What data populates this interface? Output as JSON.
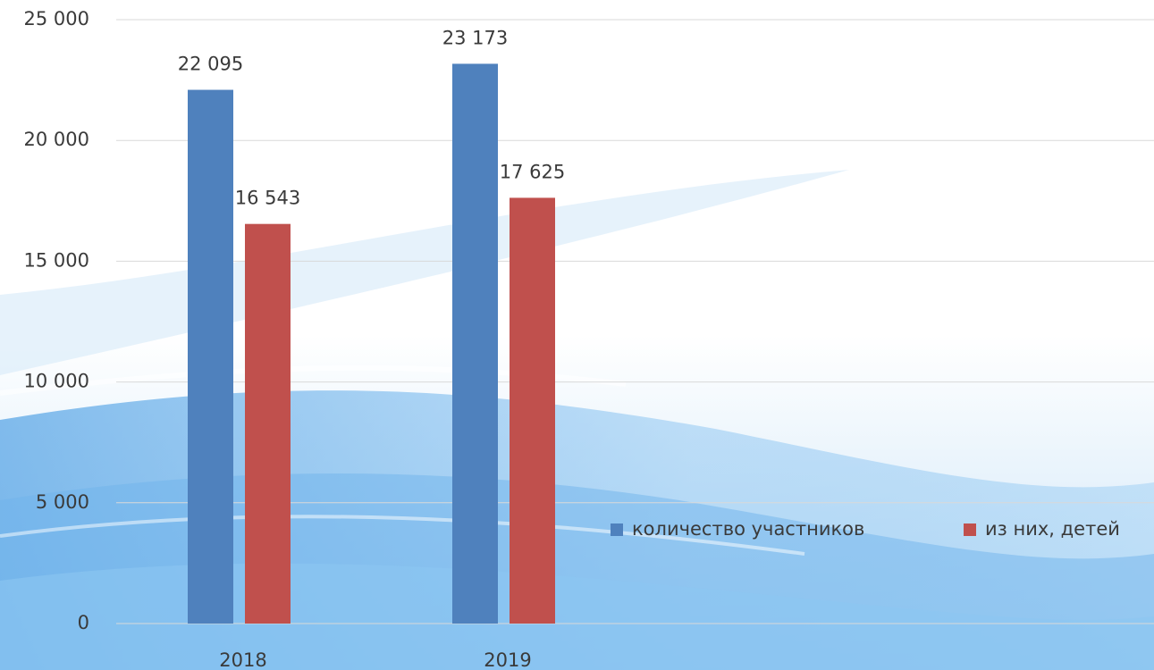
{
  "chart_data": {
    "type": "bar",
    "categories": [
      "2018",
      "2019"
    ],
    "series": [
      {
        "name": "количество участников",
        "color": "#4f81bd",
        "values": [
          22095,
          23173
        ],
        "value_labels": [
          "22 095",
          "23 173"
        ]
      },
      {
        "name": "из них, детей",
        "color": "#c0504d",
        "values": [
          16543,
          17625
        ],
        "value_labels": [
          "16 543",
          "17 625"
        ]
      }
    ],
    "ylim": [
      0,
      25000
    ],
    "yticks": [
      0,
      {
        "value": 5000,
        "label": "5 000"
      },
      {
        "value": 10000,
        "label": "10 000"
      },
      {
        "value": 15000,
        "label": "15 000"
      },
      {
        "value": 20000,
        "label": "20 000"
      },
      {
        "value": 25000,
        "label": "25 000"
      }
    ],
    "grid": true,
    "legend": "right"
  }
}
